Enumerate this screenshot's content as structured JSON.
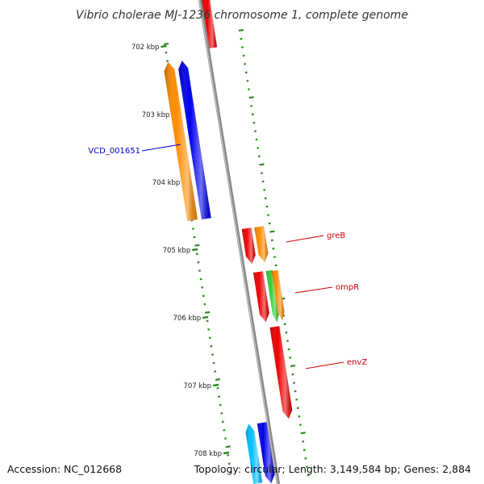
{
  "title": "Vibrio cholerae MJ-1236 chromosome 1, complete genome",
  "scale": {
    "ticks": [
      {
        "label": "702 kbp"
      },
      {
        "label": "703 kbp"
      },
      {
        "label": "704 kbp"
      },
      {
        "label": "705 kbp"
      },
      {
        "label": "706 kbp"
      },
      {
        "label": "707 kbp"
      },
      {
        "label": "708 kbp"
      }
    ]
  },
  "genes": [
    {
      "name": "",
      "strand": "reverse",
      "color": "#ee0000"
    },
    {
      "name": "",
      "strand": "reverse",
      "color": "#ff8c00"
    },
    {
      "name": "VCD_001651",
      "strand": "reverse",
      "color": "#0000ee",
      "label_color": "#0000cc"
    },
    {
      "name": "greB",
      "strand": "forward",
      "color": "#ee0000",
      "label_color": "#cc0000"
    },
    {
      "name": "",
      "strand": "forward",
      "color": "#ff8c00"
    },
    {
      "name": "ompR",
      "strand": "forward",
      "color": "#ee0000",
      "label_color": "#cc0000"
    },
    {
      "name": "",
      "strand": "forward",
      "color": "#33cc33"
    },
    {
      "name": "",
      "strand": "forward",
      "color": "#ff8c00"
    },
    {
      "name": "envZ",
      "strand": "forward",
      "color": "#ee0000",
      "label_color": "#cc0000"
    },
    {
      "name": "",
      "strand": "reverse",
      "color": "#00bfff"
    },
    {
      "name": "",
      "strand": "forward",
      "color": "#0000ee"
    }
  ],
  "colors": {
    "backbone": "#8a8a8a",
    "tick": "#2e8b22"
  },
  "footer": {
    "accession": "Accession: NC_012668",
    "summary": "Topology: circular; Length: 3,149,584 bp; Genes: 2,884"
  }
}
